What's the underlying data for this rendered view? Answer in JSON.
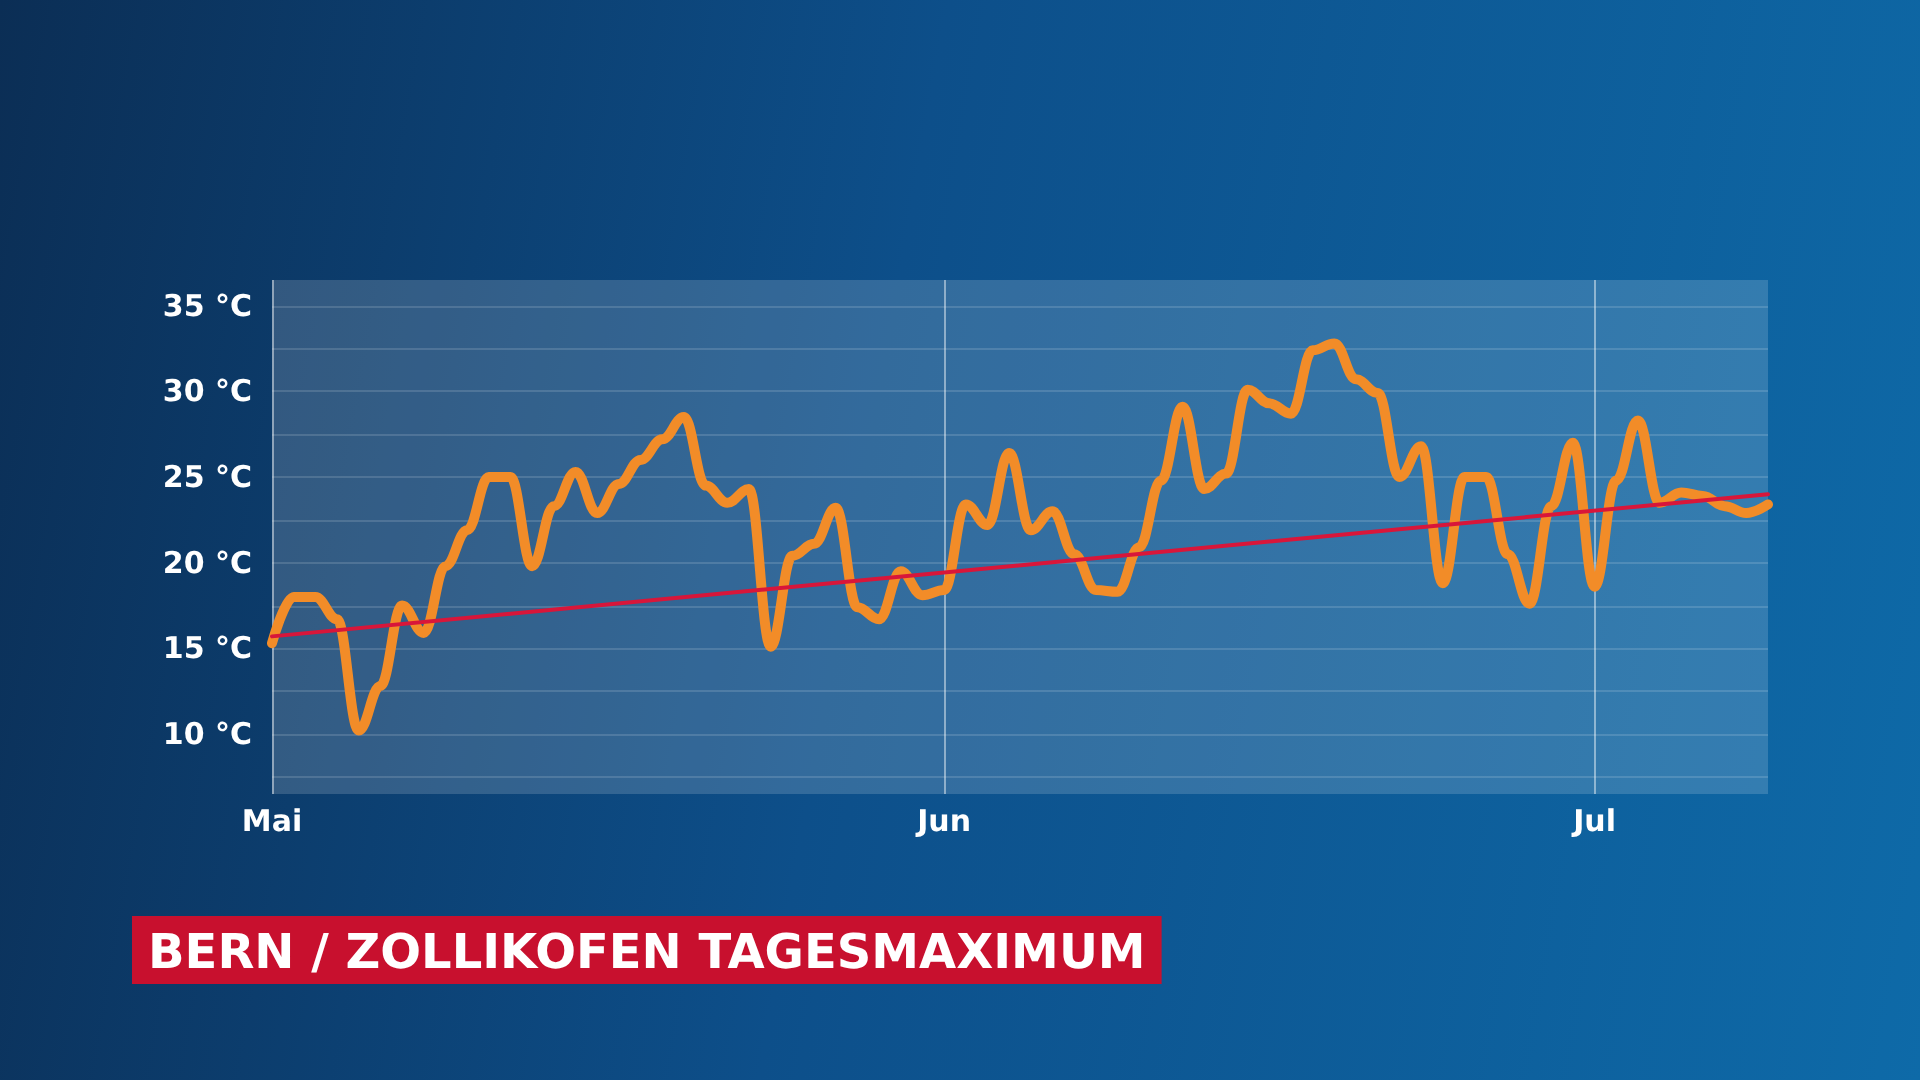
{
  "chart_data": {
    "type": "line",
    "title": "BERN / ZOLLIKOFEN TAGESMAXIMUM",
    "xlim": [
      "--05-01",
      "--07-09"
    ],
    "xticks": [
      {
        "value": "--05-01",
        "label": "Mai"
      },
      {
        "value": "--06-01",
        "label": "Jun"
      },
      {
        "value": "--07-01",
        "label": "Jul"
      }
    ],
    "ylim": [
      6.5,
      36.5
    ],
    "yticks": [
      {
        "value": 7.5,
        "label": null
      },
      {
        "value": 10,
        "label": "10 °C"
      },
      {
        "value": 12.5,
        "label": null
      },
      {
        "value": 15,
        "label": "15 °C"
      },
      {
        "value": 17.5,
        "label": null
      },
      {
        "value": 20,
        "label": "20 °C"
      },
      {
        "value": 22.5,
        "label": null
      },
      {
        "value": 25,
        "label": "25 °C"
      },
      {
        "value": 27.5,
        "label": null
      },
      {
        "value": 30,
        "label": "30 °C"
      },
      {
        "value": 32.5,
        "label": null
      },
      {
        "value": 35,
        "label": "35 °C"
      }
    ],
    "grid": true,
    "marker": "none",
    "x": [
      "--05-01",
      "--05-02",
      "--05-03",
      "--05-04",
      "--05-05",
      "--05-06",
      "--05-07",
      "--05-08",
      "--05-09",
      "--05-10",
      "--05-11",
      "--05-12",
      "--05-13",
      "--05-14",
      "--05-15",
      "--05-16",
      "--05-17",
      "--05-18",
      "--05-19",
      "--05-20",
      "--05-21",
      "--05-22",
      "--05-23",
      "--05-24",
      "--05-25",
      "--05-26",
      "--05-27",
      "--05-28",
      "--05-29",
      "--05-30",
      "--05-31",
      "--06-01",
      "--06-02",
      "--06-03",
      "--06-04",
      "--06-05",
      "--06-06",
      "--06-07",
      "--06-08",
      "--06-09",
      "--06-10",
      "--06-11",
      "--06-12",
      "--06-13",
      "--06-14",
      "--06-15",
      "--06-16",
      "--06-17",
      "--06-18",
      "--06-19",
      "--06-20",
      "--06-21",
      "--06-22",
      "--06-23",
      "--06-24",
      "--06-25",
      "--06-26",
      "--06-27",
      "--06-28",
      "--06-29",
      "--06-30",
      "--07-01",
      "--07-02",
      "--07-03",
      "--07-04",
      "--07-05",
      "--07-06",
      "--07-07",
      "--07-08",
      "--07-09"
    ],
    "series": [
      {
        "color": "#f28c28",
        "values": [
          15.3,
          18.0,
          18.0,
          16.7,
          10.2,
          12.8,
          17.5,
          15.9,
          19.8,
          21.9,
          25.0,
          25.0,
          19.8,
          23.3,
          25.3,
          22.9,
          24.6,
          26.0,
          27.2,
          28.5,
          24.5,
          23.5,
          24.3,
          15.1,
          20.4,
          21.1,
          23.2,
          17.4,
          16.7,
          19.5,
          18.1,
          18.4,
          23.4,
          22.2,
          26.4,
          21.9,
          23.0,
          20.5,
          18.4,
          18.3,
          20.9,
          24.8,
          29.1,
          24.3,
          25.2,
          30.1,
          29.3,
          28.7,
          32.4,
          32.8,
          30.7,
          29.9,
          25.0,
          26.8,
          18.8,
          25.0,
          25.0,
          20.5,
          17.6,
          23.3,
          27.0,
          18.6,
          24.8,
          28.3,
          23.5,
          24.1,
          23.9,
          23.3,
          22.9,
          23.4
        ]
      },
      {
        "type": "line",
        "color": "#d8163a",
        "x": [
          "--05-01",
          "--07-09"
        ],
        "values": [
          15.7,
          24.0
        ]
      }
    ]
  }
}
